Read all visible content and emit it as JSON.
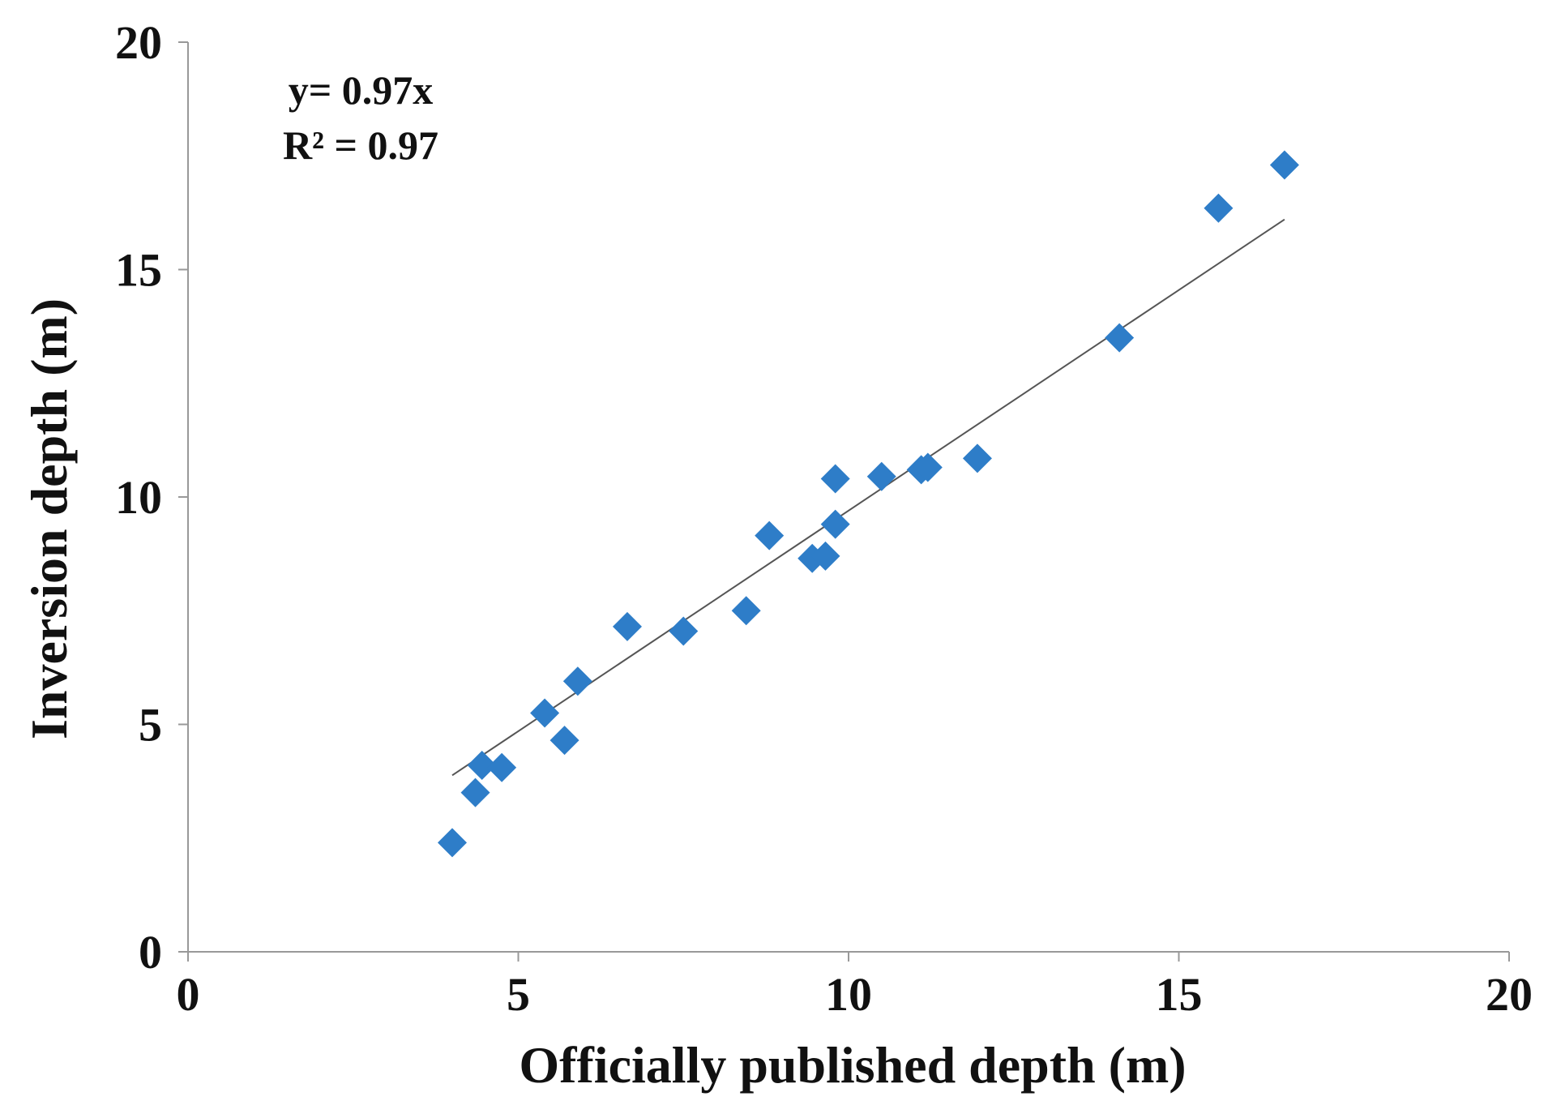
{
  "chart_data": {
    "type": "scatter",
    "title": "",
    "xlabel": "Officially published depth (m)",
    "ylabel": "Inversion depth (m)",
    "xlim": [
      0,
      20
    ],
    "ylim": [
      0,
      20
    ],
    "x_ticks": [
      "0",
      "5",
      "10",
      "15",
      "20"
    ],
    "y_ticks": [
      "0",
      "5",
      "10",
      "15",
      "20"
    ],
    "grid": false,
    "legend": "none",
    "marker": "diamond",
    "marker_color": "#2E7DC8",
    "trendline_color": "#555555",
    "annotations": {
      "equation": "y= 0.97x",
      "r_squared": "R² = 0.97"
    },
    "trendline": {
      "slope": 0.97,
      "x_start": 4.0,
      "x_end": 16.6
    },
    "series": [
      {
        "x": [
          4.0,
          4.35,
          4.45,
          4.75,
          5.4,
          5.7,
          5.9,
          6.65,
          7.5,
          8.45,
          8.8,
          9.45,
          9.65,
          9.8,
          9.8,
          10.5,
          11.1,
          11.2,
          11.95,
          14.1,
          15.6,
          16.6
        ],
        "y": [
          2.4,
          3.5,
          4.1,
          4.05,
          5.25,
          4.65,
          5.95,
          7.15,
          7.05,
          7.5,
          9.15,
          8.65,
          8.7,
          9.4,
          10.4,
          10.45,
          10.6,
          10.65,
          10.85,
          13.5,
          16.35,
          17.3
        ]
      }
    ]
  }
}
